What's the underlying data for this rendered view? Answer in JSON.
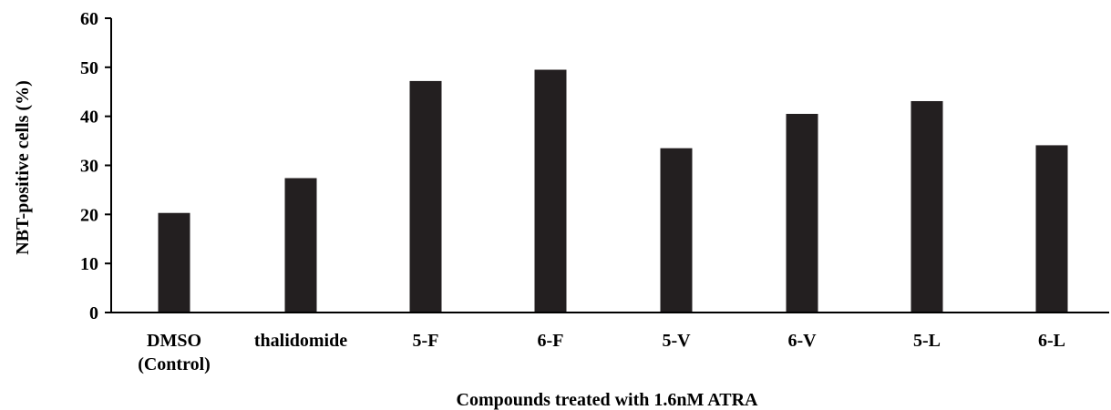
{
  "chart_data": {
    "type": "bar",
    "categories": [
      "DMSO\n(Control)",
      "thalidomide",
      "5-F",
      "6-F",
      "5-V",
      "6-V",
      "5-L",
      "6-L"
    ],
    "values": [
      20.3,
      27.4,
      47.2,
      49.5,
      33.5,
      40.5,
      43.1,
      34.1
    ],
    "xlabel": "Compounds treated with 1.6nM ATRA",
    "ylabel": "NBT-positive cells (%)",
    "ylim": [
      0,
      60
    ],
    "yticks": [
      0,
      10,
      20,
      30,
      40,
      50,
      60
    ],
    "grid": false,
    "legend": "none",
    "bar_color": "#231f20"
  }
}
